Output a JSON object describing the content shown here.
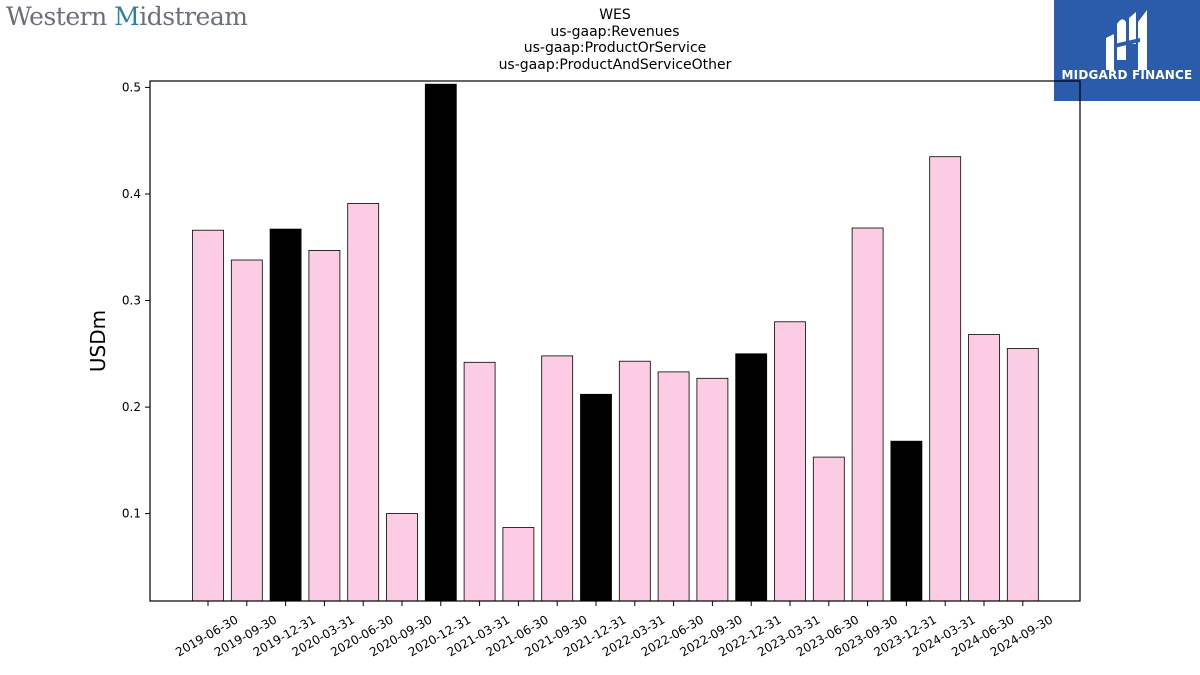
{
  "header": {
    "company_logo_part1": "Western ",
    "company_logo_part2": "M",
    "company_logo_part3": "idstream",
    "brand_name": "MIDGARD FINANCE",
    "brand_color": "#2b5bab"
  },
  "colors": {
    "bar_default": "#fccce5",
    "bar_highlight": "#000000",
    "bar_edge": "#000000"
  },
  "chart_data": {
    "type": "bar",
    "title_lines": [
      "WES",
      "us-gaap:Revenues",
      "us-gaap:ProductOrService",
      "us-gaap:ProductAndServiceOther"
    ],
    "xlabel": "",
    "ylabel": "USDm",
    "ylim": [
      0.018,
      0.506
    ],
    "yticks": [
      0.1,
      0.2,
      0.3,
      0.4,
      0.5
    ],
    "ytick_labels": [
      "0.1",
      "0.2",
      "0.3",
      "0.4",
      "0.5"
    ],
    "categories": [
      "2019-06-30",
      "2019-09-30",
      "2019-12-31",
      "2020-03-31",
      "2020-06-30",
      "2020-09-30",
      "2020-12-31",
      "2021-03-31",
      "2021-06-30",
      "2021-09-30",
      "2021-12-31",
      "2022-03-31",
      "2022-06-30",
      "2022-09-30",
      "2022-12-31",
      "2023-03-31",
      "2023-06-30",
      "2023-09-30",
      "2023-12-31",
      "2024-03-31",
      "2024-06-30",
      "2024-09-30"
    ],
    "values": [
      0.366,
      0.338,
      0.367,
      0.347,
      0.391,
      0.1,
      0.503,
      0.242,
      0.087,
      0.248,
      0.212,
      0.243,
      0.233,
      0.227,
      0.25,
      0.28,
      0.153,
      0.368,
      0.168,
      0.435,
      0.268,
      0.255
    ],
    "highlight": [
      false,
      false,
      true,
      false,
      false,
      false,
      true,
      false,
      false,
      false,
      true,
      false,
      false,
      false,
      true,
      false,
      false,
      false,
      true,
      false,
      false,
      false
    ],
    "grid": false,
    "legend": "none"
  }
}
